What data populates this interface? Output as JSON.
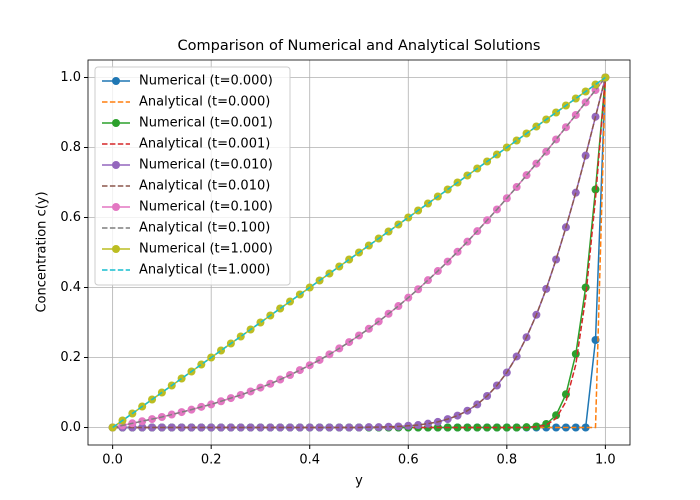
{
  "chart_data": {
    "type": "line",
    "title": "Comparison of Numerical and Analytical Solutions",
    "x_label": "y",
    "y_label": "Concentration c(y)",
    "x": [
      0,
      0.02,
      0.04,
      0.06,
      0.08,
      0.1,
      0.12,
      0.14,
      0.16,
      0.18,
      0.2,
      0.22,
      0.24,
      0.26,
      0.28,
      0.3,
      0.32,
      0.34,
      0.36,
      0.38,
      0.4,
      0.42,
      0.44,
      0.46,
      0.48,
      0.5,
      0.52,
      0.54,
      0.56,
      0.58,
      0.6,
      0.62,
      0.64,
      0.66,
      0.68,
      0.7,
      0.72,
      0.74,
      0.76,
      0.78,
      0.8,
      0.82,
      0.84,
      0.86,
      0.88,
      0.9,
      0.92,
      0.94,
      0.96,
      0.98,
      1
    ],
    "xlim": [
      -0.05,
      1.05
    ],
    "ylim": [
      -0.05,
      1.05
    ],
    "xticks": [
      {
        "value": 0,
        "label": "0.0"
      },
      0.2,
      0.4,
      0.6,
      0.8,
      {
        "value": 1,
        "label": "1.0"
      }
    ],
    "yticks": [
      {
        "value": 0,
        "label": "0.0"
      },
      0.2,
      0.4,
      0.6,
      0.8,
      {
        "value": 1,
        "label": "1.0"
      }
    ],
    "grid": true,
    "legend": "upper-left",
    "series": [
      {
        "name": "Numerical (t=0.000)",
        "color": "#1f77b4",
        "style": "marker",
        "values": [
          0,
          0,
          0,
          0,
          0,
          0,
          0,
          0,
          0,
          0,
          0,
          0,
          0,
          0,
          0,
          0,
          0,
          0,
          0,
          0,
          0,
          0,
          0,
          0,
          0,
          0,
          0,
          0,
          0,
          0,
          0,
          0,
          0,
          0,
          0,
          0,
          0,
          0,
          0,
          0,
          0,
          0,
          0,
          0,
          0,
          0,
          0,
          0,
          0,
          0.25,
          1
        ]
      },
      {
        "name": "Analytical (t=0.000)",
        "color": "#ff7f0e",
        "style": "dashed",
        "values": [
          0,
          0,
          0,
          0,
          0,
          0,
          0,
          0,
          0,
          0,
          0,
          0,
          0,
          0,
          0,
          0,
          0,
          0,
          0,
          0,
          0,
          0,
          0,
          0,
          0,
          0,
          0,
          0,
          0,
          0,
          0,
          0,
          0,
          0,
          0,
          0,
          0,
          0,
          0,
          0,
          0,
          0,
          0,
          0,
          0,
          0,
          0,
          0,
          0,
          0,
          1
        ]
      },
      {
        "name": "Numerical (t=0.001)",
        "color": "#2ca02c",
        "style": "marker",
        "values": [
          0,
          0,
          0,
          0,
          0,
          0,
          0,
          0,
          0,
          0,
          0,
          0,
          0,
          0,
          0,
          0,
          0,
          0,
          0,
          0,
          0,
          0,
          0,
          0,
          0,
          0,
          0,
          0,
          0,
          0,
          0,
          0,
          0,
          0,
          0,
          0,
          0,
          0,
          0,
          0,
          0,
          0,
          0.001,
          0.003,
          0.01,
          0.035,
          0.095,
          0.21,
          0.4,
          0.68,
          1
        ]
      },
      {
        "name": "Analytical (t=0.001)",
        "color": "#d62728",
        "style": "dashed",
        "values": [
          0,
          0,
          0,
          0,
          0,
          0,
          0,
          0,
          0,
          0,
          0,
          0,
          0,
          0,
          0,
          0,
          0,
          0,
          0,
          0,
          0,
          0,
          0,
          0,
          0,
          0,
          0,
          0,
          0,
          0,
          0,
          0,
          0,
          0,
          0,
          0,
          0,
          0,
          0,
          0,
          0,
          0,
          0,
          0.002,
          0.007,
          0.026,
          0.074,
          0.18,
          0.371,
          0.655,
          1
        ]
      },
      {
        "name": "Numerical (t=0.010)",
        "color": "#9467bd",
        "style": "marker",
        "values": [
          0,
          0,
          0,
          0,
          0,
          0,
          0,
          0,
          0,
          0,
          0,
          0,
          0,
          0,
          0,
          0,
          0,
          0,
          0,
          0,
          0,
          0,
          0,
          0,
          0,
          0,
          0.001,
          0.001,
          0.002,
          0.003,
          0.005,
          0.007,
          0.011,
          0.016,
          0.024,
          0.034,
          0.048,
          0.066,
          0.09,
          0.12,
          0.157,
          0.203,
          0.258,
          0.322,
          0.396,
          0.48,
          0.572,
          0.671,
          0.777,
          0.888,
          1
        ]
      },
      {
        "name": "Analytical (t=0.010)",
        "color": "#8c564b",
        "style": "dashed",
        "values": [
          0,
          0,
          0,
          0,
          0,
          0,
          0,
          0,
          0,
          0,
          0,
          0,
          0,
          0,
          0,
          0,
          0,
          0,
          0,
          0,
          0,
          0,
          0,
          0,
          0,
          0,
          0.001,
          0.001,
          0.002,
          0.003,
          0.005,
          0.007,
          0.011,
          0.016,
          0.024,
          0.034,
          0.048,
          0.066,
          0.09,
          0.12,
          0.157,
          0.203,
          0.258,
          0.322,
          0.396,
          0.48,
          0.572,
          0.671,
          0.777,
          0.888,
          1
        ]
      },
      {
        "name": "Numerical (t=0.100)",
        "color": "#e377c2",
        "style": "marker",
        "values": [
          0,
          0.006,
          0.012,
          0.018,
          0.024,
          0.03,
          0.037,
          0.044,
          0.051,
          0.059,
          0.066,
          0.075,
          0.084,
          0.093,
          0.103,
          0.114,
          0.125,
          0.137,
          0.15,
          0.164,
          0.178,
          0.193,
          0.209,
          0.226,
          0.244,
          0.263,
          0.282,
          0.303,
          0.325,
          0.347,
          0.371,
          0.395,
          0.421,
          0.447,
          0.474,
          0.502,
          0.531,
          0.561,
          0.592,
          0.623,
          0.655,
          0.687,
          0.721,
          0.754,
          0.788,
          0.823,
          0.858,
          0.893,
          0.929,
          0.964,
          1
        ]
      },
      {
        "name": "Analytical (t=0.100)",
        "color": "#7f7f7f",
        "style": "dashed",
        "values": [
          0,
          0.006,
          0.012,
          0.018,
          0.024,
          0.03,
          0.037,
          0.044,
          0.051,
          0.059,
          0.066,
          0.075,
          0.084,
          0.093,
          0.103,
          0.114,
          0.125,
          0.137,
          0.15,
          0.164,
          0.178,
          0.193,
          0.209,
          0.226,
          0.244,
          0.263,
          0.282,
          0.303,
          0.325,
          0.347,
          0.371,
          0.395,
          0.421,
          0.447,
          0.474,
          0.502,
          0.531,
          0.561,
          0.592,
          0.623,
          0.655,
          0.687,
          0.721,
          0.754,
          0.788,
          0.823,
          0.858,
          0.893,
          0.929,
          0.964,
          1
        ]
      },
      {
        "name": "Numerical (t=1.000)",
        "color": "#bcbd22",
        "style": "marker",
        "values": [
          0,
          0.02,
          0.04,
          0.06,
          0.08,
          0.1,
          0.12,
          0.14,
          0.16,
          0.18,
          0.2,
          0.22,
          0.24,
          0.26,
          0.28,
          0.3,
          0.32,
          0.34,
          0.36,
          0.38,
          0.4,
          0.42,
          0.44,
          0.46,
          0.48,
          0.5,
          0.52,
          0.54,
          0.56,
          0.58,
          0.6,
          0.62,
          0.64,
          0.66,
          0.68,
          0.7,
          0.72,
          0.74,
          0.76,
          0.78,
          0.8,
          0.82,
          0.84,
          0.86,
          0.88,
          0.9,
          0.92,
          0.94,
          0.96,
          0.98,
          1
        ]
      },
      {
        "name": "Analytical (t=1.000)",
        "color": "#17becf",
        "style": "dashed",
        "values": [
          0,
          0.02,
          0.04,
          0.06,
          0.08,
          0.1,
          0.12,
          0.14,
          0.16,
          0.18,
          0.2,
          0.22,
          0.24,
          0.26,
          0.28,
          0.3,
          0.32,
          0.34,
          0.36,
          0.38,
          0.4,
          0.42,
          0.44,
          0.46,
          0.48,
          0.5,
          0.52,
          0.54,
          0.56,
          0.58,
          0.6,
          0.62,
          0.64,
          0.66,
          0.68,
          0.7,
          0.72,
          0.74,
          0.76,
          0.78,
          0.8,
          0.82,
          0.84,
          0.86,
          0.88,
          0.9,
          0.92,
          0.94,
          0.96,
          0.98,
          1
        ]
      }
    ]
  }
}
